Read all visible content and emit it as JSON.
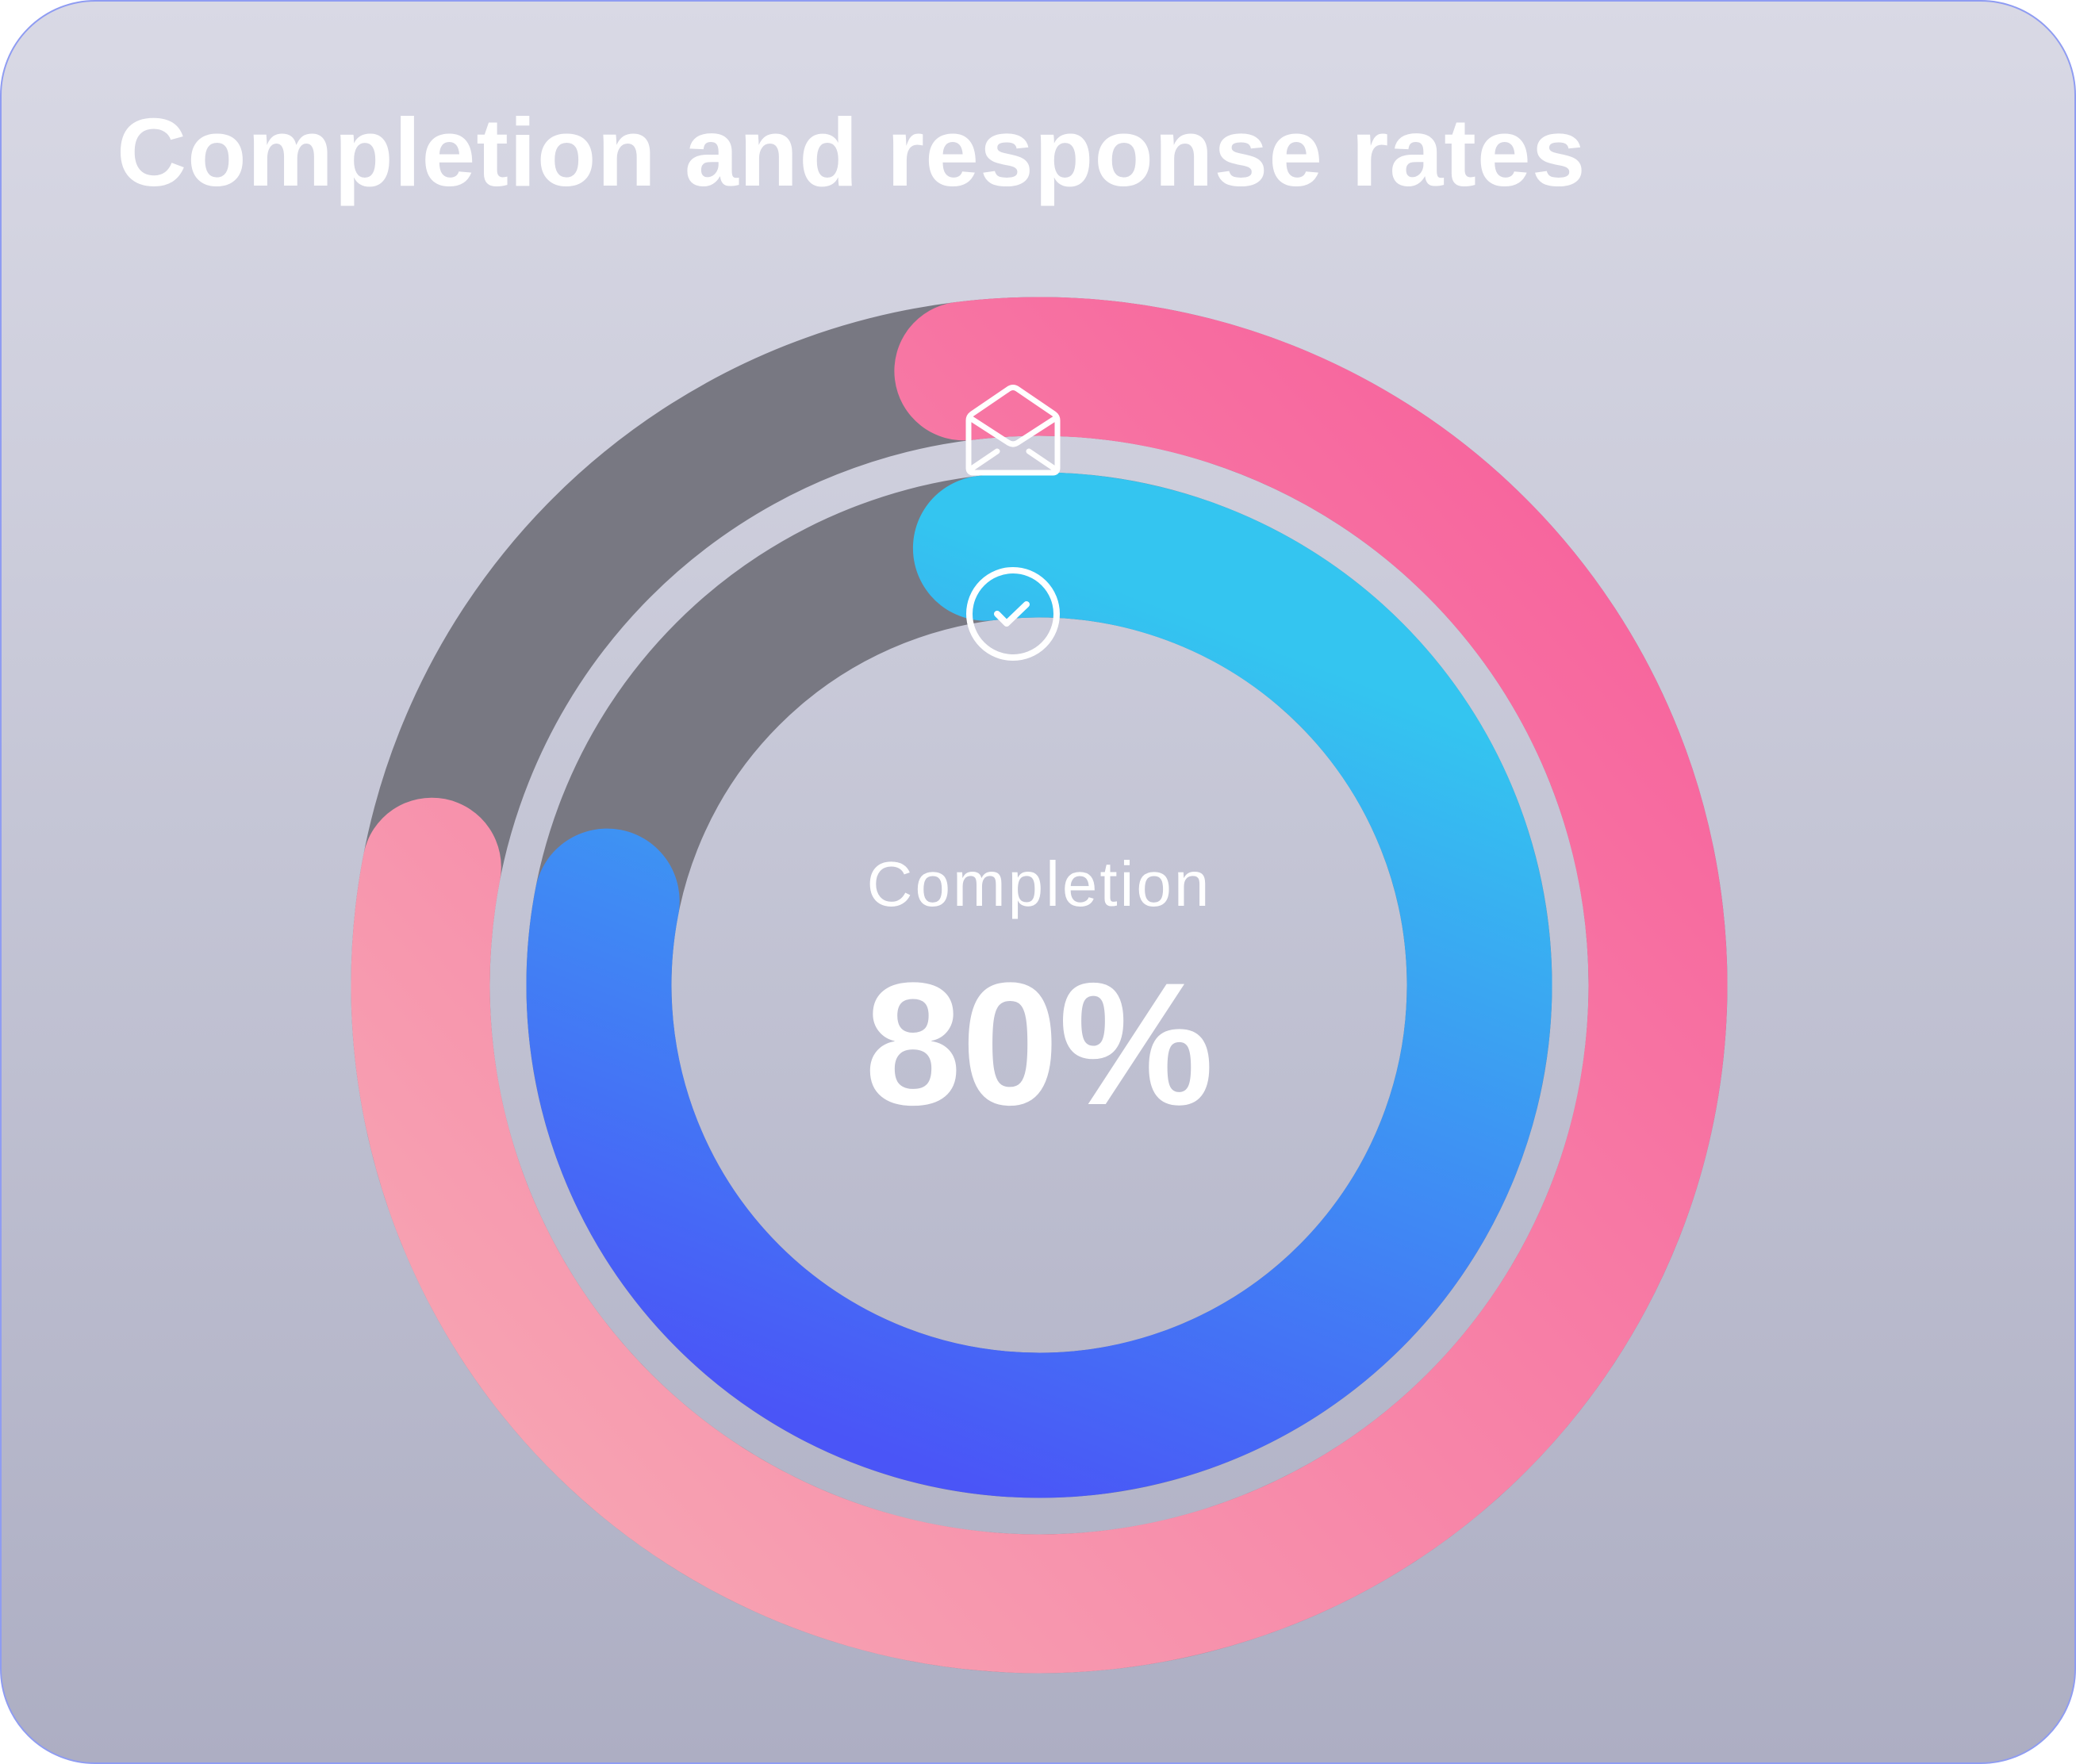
{
  "title": "Completion and response rates",
  "center": {
    "label": "Completion",
    "value_text": "80%"
  },
  "chart_data": {
    "type": "radial-bar",
    "title": "Completion and response rates",
    "series": [
      {
        "icon": "envelope-open-icon",
        "value": 80,
        "unit": "%",
        "colors": [
          "#f7609c",
          "#f7a3b2"
        ]
      },
      {
        "label": "Completion",
        "icon": "check-circle-icon",
        "value": 80,
        "unit": "%",
        "colors": [
          "#34c5f0",
          "#4a55f7"
        ]
      }
    ],
    "range": [
      0,
      100
    ],
    "track_color": "#787882"
  }
}
